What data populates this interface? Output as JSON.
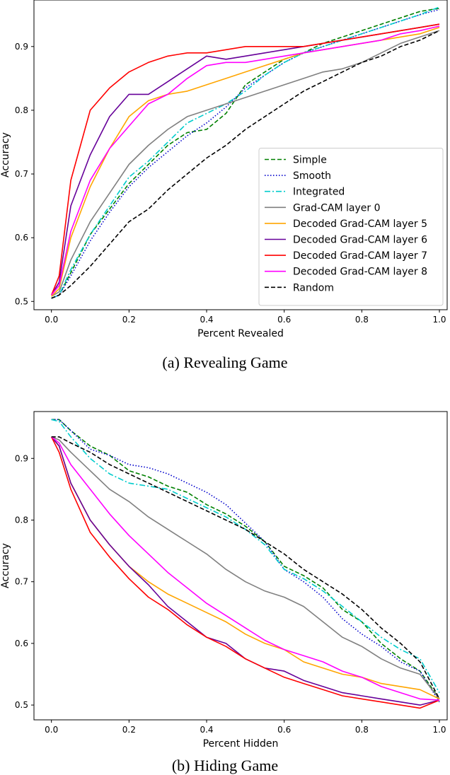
{
  "chart_data": [
    {
      "type": "line",
      "title": "",
      "xlabel": "Percent Revealed",
      "ylabel": "Accuracy",
      "xlim": [
        -0.045,
        1.02
      ],
      "ylim": [
        0.487,
        0.973
      ],
      "xticks": [
        0.0,
        0.2,
        0.4,
        0.6,
        0.8,
        1.0
      ],
      "yticks": [
        0.5,
        0.6,
        0.7,
        0.8,
        0.9
      ],
      "legend_position": "lower-right",
      "caption": "(a) Revealing Game",
      "series": [
        {
          "name": "Simple",
          "color": "#008000",
          "dash": "dashed",
          "x": [
            0.0,
            0.02,
            0.05,
            0.1,
            0.15,
            0.2,
            0.25,
            0.3,
            0.35,
            0.4,
            0.45,
            0.5,
            0.55,
            0.6,
            0.65,
            0.7,
            0.75,
            0.8,
            0.85,
            0.9,
            0.95,
            1.0
          ],
          "y": [
            0.505,
            0.51,
            0.545,
            0.605,
            0.645,
            0.685,
            0.715,
            0.745,
            0.765,
            0.77,
            0.795,
            0.84,
            0.86,
            0.88,
            0.89,
            0.905,
            0.915,
            0.925,
            0.935,
            0.945,
            0.955,
            0.96
          ]
        },
        {
          "name": "Smooth",
          "color": "#0000cc",
          "dash": "dotted",
          "x": [
            0.0,
            0.02,
            0.05,
            0.1,
            0.15,
            0.2,
            0.25,
            0.3,
            0.35,
            0.4,
            0.45,
            0.5,
            0.55,
            0.6,
            0.65,
            0.7,
            0.75,
            0.8,
            0.85,
            0.9,
            0.95,
            1.0
          ],
          "y": [
            0.505,
            0.51,
            0.54,
            0.595,
            0.64,
            0.68,
            0.71,
            0.735,
            0.76,
            0.78,
            0.805,
            0.835,
            0.855,
            0.875,
            0.89,
            0.9,
            0.91,
            0.92,
            0.93,
            0.94,
            0.95,
            0.958
          ]
        },
        {
          "name": "Integrated",
          "color": "#00cccc",
          "dash": "dashdot",
          "x": [
            0.0,
            0.02,
            0.05,
            0.1,
            0.15,
            0.2,
            0.25,
            0.3,
            0.35,
            0.4,
            0.45,
            0.5,
            0.55,
            0.6,
            0.65,
            0.7,
            0.75,
            0.8,
            0.85,
            0.9,
            0.95,
            1.0
          ],
          "y": [
            0.505,
            0.51,
            0.55,
            0.605,
            0.65,
            0.695,
            0.72,
            0.75,
            0.78,
            0.795,
            0.81,
            0.83,
            0.855,
            0.875,
            0.89,
            0.9,
            0.91,
            0.92,
            0.93,
            0.94,
            0.95,
            0.962
          ]
        },
        {
          "name": "Grad-CAM layer 0",
          "color": "#808080",
          "dash": "solid",
          "x": [
            0.0,
            0.02,
            0.05,
            0.1,
            0.15,
            0.2,
            0.25,
            0.3,
            0.35,
            0.4,
            0.45,
            0.5,
            0.55,
            0.6,
            0.65,
            0.7,
            0.75,
            0.8,
            0.85,
            0.9,
            0.95,
            1.0
          ],
          "y": [
            0.508,
            0.515,
            0.565,
            0.625,
            0.67,
            0.715,
            0.745,
            0.77,
            0.79,
            0.8,
            0.81,
            0.82,
            0.83,
            0.84,
            0.85,
            0.86,
            0.865,
            0.875,
            0.89,
            0.905,
            0.915,
            0.925
          ]
        },
        {
          "name": "Decoded Grad-CAM layer 5",
          "color": "#ffa500",
          "dash": "solid",
          "x": [
            0.0,
            0.02,
            0.05,
            0.1,
            0.15,
            0.2,
            0.25,
            0.3,
            0.35,
            0.4,
            0.45,
            0.5,
            0.55,
            0.6,
            0.65,
            0.7,
            0.75,
            0.8,
            0.85,
            0.9,
            0.95,
            1.0
          ],
          "y": [
            0.508,
            0.52,
            0.6,
            0.68,
            0.74,
            0.79,
            0.815,
            0.825,
            0.83,
            0.84,
            0.85,
            0.86,
            0.87,
            0.88,
            0.89,
            0.895,
            0.9,
            0.905,
            0.91,
            0.915,
            0.92,
            0.93
          ]
        },
        {
          "name": "Decoded Grad-CAM layer 6",
          "color": "#660099",
          "dash": "solid",
          "x": [
            0.0,
            0.02,
            0.05,
            0.1,
            0.15,
            0.2,
            0.25,
            0.3,
            0.35,
            0.4,
            0.45,
            0.5,
            0.55,
            0.6,
            0.65,
            0.7,
            0.75,
            0.8,
            0.85,
            0.9,
            0.95,
            1.0
          ],
          "y": [
            0.51,
            0.53,
            0.65,
            0.73,
            0.79,
            0.825,
            0.825,
            0.845,
            0.865,
            0.885,
            0.88,
            0.885,
            0.89,
            0.895,
            0.9,
            0.905,
            0.91,
            0.915,
            0.92,
            0.925,
            0.93,
            0.935
          ]
        },
        {
          "name": "Decoded Grad-CAM layer 7",
          "color": "#ff0000",
          "dash": "solid",
          "x": [
            0.0,
            0.02,
            0.05,
            0.1,
            0.15,
            0.2,
            0.25,
            0.3,
            0.35,
            0.4,
            0.45,
            0.5,
            0.55,
            0.6,
            0.65,
            0.7,
            0.75,
            0.8,
            0.85,
            0.9,
            0.95,
            1.0
          ],
          "y": [
            0.51,
            0.54,
            0.69,
            0.8,
            0.835,
            0.86,
            0.875,
            0.885,
            0.89,
            0.89,
            0.895,
            0.9,
            0.9,
            0.9,
            0.9,
            0.905,
            0.91,
            0.915,
            0.92,
            0.925,
            0.93,
            0.935
          ]
        },
        {
          "name": "Decoded Grad-CAM layer 8",
          "color": "#ff00ff",
          "dash": "solid",
          "x": [
            0.0,
            0.02,
            0.05,
            0.1,
            0.15,
            0.2,
            0.25,
            0.3,
            0.35,
            0.4,
            0.45,
            0.5,
            0.55,
            0.6,
            0.65,
            0.7,
            0.75,
            0.8,
            0.85,
            0.9,
            0.95,
            1.0
          ],
          "y": [
            0.51,
            0.525,
            0.61,
            0.69,
            0.74,
            0.775,
            0.81,
            0.825,
            0.85,
            0.87,
            0.875,
            0.875,
            0.88,
            0.885,
            0.89,
            0.895,
            0.9,
            0.905,
            0.91,
            0.92,
            0.925,
            0.932
          ]
        },
        {
          "name": "Random",
          "color": "#000000",
          "dash": "dashed",
          "x": [
            0.0,
            0.02,
            0.05,
            0.1,
            0.15,
            0.2,
            0.25,
            0.3,
            0.35,
            0.4,
            0.45,
            0.5,
            0.55,
            0.6,
            0.65,
            0.7,
            0.75,
            0.8,
            0.85,
            0.9,
            0.95,
            1.0
          ],
          "y": [
            0.505,
            0.51,
            0.525,
            0.555,
            0.59,
            0.625,
            0.645,
            0.675,
            0.7,
            0.725,
            0.745,
            0.77,
            0.79,
            0.81,
            0.83,
            0.845,
            0.86,
            0.875,
            0.885,
            0.9,
            0.91,
            0.925
          ]
        }
      ]
    },
    {
      "type": "line",
      "title": "",
      "xlabel": "Percent Hidden",
      "ylabel": "Accuracy",
      "xlim": [
        -0.045,
        1.02
      ],
      "ylim": [
        0.476,
        0.976
      ],
      "xticks": [
        0.0,
        0.2,
        0.4,
        0.6,
        0.8,
        1.0
      ],
      "yticks": [
        0.5,
        0.6,
        0.7,
        0.8,
        0.9
      ],
      "legend_position": "none",
      "caption": "(b) Hiding Game",
      "series": [
        {
          "name": "Simple",
          "color": "#008000",
          "dash": "dashed",
          "x": [
            0.0,
            0.02,
            0.05,
            0.1,
            0.15,
            0.2,
            0.25,
            0.3,
            0.35,
            0.4,
            0.45,
            0.5,
            0.55,
            0.6,
            0.65,
            0.7,
            0.75,
            0.8,
            0.85,
            0.9,
            0.95,
            1.0
          ],
          "y": [
            0.963,
            0.963,
            0.945,
            0.92,
            0.905,
            0.88,
            0.87,
            0.855,
            0.845,
            0.825,
            0.81,
            0.79,
            0.765,
            0.725,
            0.71,
            0.69,
            0.655,
            0.635,
            0.6,
            0.575,
            0.555,
            0.51
          ]
        },
        {
          "name": "Smooth",
          "color": "#0000cc",
          "dash": "dotted",
          "x": [
            0.0,
            0.02,
            0.05,
            0.1,
            0.15,
            0.2,
            0.25,
            0.3,
            0.35,
            0.4,
            0.45,
            0.5,
            0.55,
            0.6,
            0.65,
            0.7,
            0.75,
            0.8,
            0.85,
            0.9,
            0.95,
            1.0
          ],
          "y": [
            0.963,
            0.963,
            0.945,
            0.915,
            0.905,
            0.89,
            0.885,
            0.875,
            0.86,
            0.845,
            0.825,
            0.795,
            0.765,
            0.72,
            0.7,
            0.675,
            0.64,
            0.615,
            0.595,
            0.57,
            0.555,
            0.505
          ]
        },
        {
          "name": "Integrated",
          "color": "#00cccc",
          "dash": "dashdot",
          "x": [
            0.0,
            0.02,
            0.05,
            0.1,
            0.15,
            0.2,
            0.25,
            0.3,
            0.35,
            0.4,
            0.45,
            0.5,
            0.55,
            0.6,
            0.65,
            0.7,
            0.75,
            0.8,
            0.85,
            0.9,
            0.95,
            1.0
          ],
          "y": [
            0.963,
            0.96,
            0.935,
            0.9,
            0.875,
            0.86,
            0.855,
            0.85,
            0.835,
            0.82,
            0.805,
            0.785,
            0.76,
            0.72,
            0.705,
            0.685,
            0.66,
            0.635,
            0.61,
            0.59,
            0.575,
            0.52
          ]
        },
        {
          "name": "Grad-CAM layer 0",
          "color": "#808080",
          "dash": "solid",
          "x": [
            0.0,
            0.02,
            0.05,
            0.1,
            0.15,
            0.2,
            0.25,
            0.3,
            0.35,
            0.4,
            0.45,
            0.5,
            0.55,
            0.6,
            0.65,
            0.7,
            0.75,
            0.8,
            0.85,
            0.9,
            0.95,
            1.0
          ],
          "y": [
            0.935,
            0.93,
            0.91,
            0.88,
            0.85,
            0.83,
            0.805,
            0.785,
            0.765,
            0.745,
            0.72,
            0.7,
            0.685,
            0.675,
            0.66,
            0.635,
            0.61,
            0.595,
            0.575,
            0.56,
            0.55,
            0.51
          ]
        },
        {
          "name": "Decoded Grad-CAM layer 5",
          "color": "#ffa500",
          "dash": "solid",
          "x": [
            0.0,
            0.02,
            0.05,
            0.1,
            0.15,
            0.2,
            0.25,
            0.3,
            0.35,
            0.4,
            0.45,
            0.5,
            0.55,
            0.6,
            0.65,
            0.7,
            0.75,
            0.8,
            0.85,
            0.9,
            0.95,
            1.0
          ],
          "y": [
            0.935,
            0.92,
            0.86,
            0.8,
            0.76,
            0.725,
            0.7,
            0.68,
            0.665,
            0.65,
            0.635,
            0.615,
            0.6,
            0.59,
            0.57,
            0.56,
            0.55,
            0.545,
            0.535,
            0.53,
            0.525,
            0.51
          ]
        },
        {
          "name": "Decoded Grad-CAM layer 6",
          "color": "#660099",
          "dash": "solid",
          "x": [
            0.0,
            0.02,
            0.05,
            0.1,
            0.15,
            0.2,
            0.25,
            0.3,
            0.35,
            0.4,
            0.45,
            0.5,
            0.55,
            0.6,
            0.65,
            0.7,
            0.75,
            0.8,
            0.85,
            0.9,
            0.95,
            1.0
          ],
          "y": [
            0.935,
            0.92,
            0.86,
            0.8,
            0.76,
            0.725,
            0.695,
            0.66,
            0.635,
            0.61,
            0.6,
            0.575,
            0.56,
            0.555,
            0.54,
            0.53,
            0.52,
            0.515,
            0.51,
            0.505,
            0.5,
            0.508
          ]
        },
        {
          "name": "Decoded Grad-CAM layer 7",
          "color": "#ff0000",
          "dash": "solid",
          "x": [
            0.0,
            0.02,
            0.05,
            0.1,
            0.15,
            0.2,
            0.25,
            0.3,
            0.35,
            0.4,
            0.45,
            0.5,
            0.55,
            0.6,
            0.65,
            0.7,
            0.75,
            0.8,
            0.85,
            0.9,
            0.95,
            1.0
          ],
          "y": [
            0.935,
            0.91,
            0.85,
            0.78,
            0.74,
            0.705,
            0.675,
            0.655,
            0.63,
            0.61,
            0.595,
            0.575,
            0.56,
            0.545,
            0.535,
            0.525,
            0.515,
            0.51,
            0.505,
            0.5,
            0.495,
            0.508
          ]
        },
        {
          "name": "Decoded Grad-CAM layer 8",
          "color": "#ff00ff",
          "dash": "solid",
          "x": [
            0.0,
            0.02,
            0.05,
            0.1,
            0.15,
            0.2,
            0.25,
            0.3,
            0.35,
            0.4,
            0.45,
            0.5,
            0.55,
            0.6,
            0.65,
            0.7,
            0.75,
            0.8,
            0.85,
            0.9,
            0.95,
            1.0
          ],
          "y": [
            0.935,
            0.925,
            0.89,
            0.85,
            0.81,
            0.775,
            0.745,
            0.715,
            0.69,
            0.665,
            0.645,
            0.625,
            0.605,
            0.59,
            0.58,
            0.57,
            0.555,
            0.545,
            0.53,
            0.52,
            0.51,
            0.508
          ]
        },
        {
          "name": "Random",
          "color": "#000000",
          "dash": "dashed",
          "x": [
            0.0,
            0.02,
            0.05,
            0.1,
            0.15,
            0.2,
            0.25,
            0.3,
            0.35,
            0.4,
            0.45,
            0.5,
            0.55,
            0.6,
            0.65,
            0.7,
            0.75,
            0.8,
            0.85,
            0.9,
            0.95,
            1.0
          ],
          "y": [
            0.935,
            0.935,
            0.925,
            0.91,
            0.89,
            0.875,
            0.86,
            0.845,
            0.83,
            0.815,
            0.8,
            0.785,
            0.765,
            0.745,
            0.72,
            0.7,
            0.68,
            0.655,
            0.625,
            0.6,
            0.57,
            0.51
          ]
        }
      ]
    }
  ]
}
